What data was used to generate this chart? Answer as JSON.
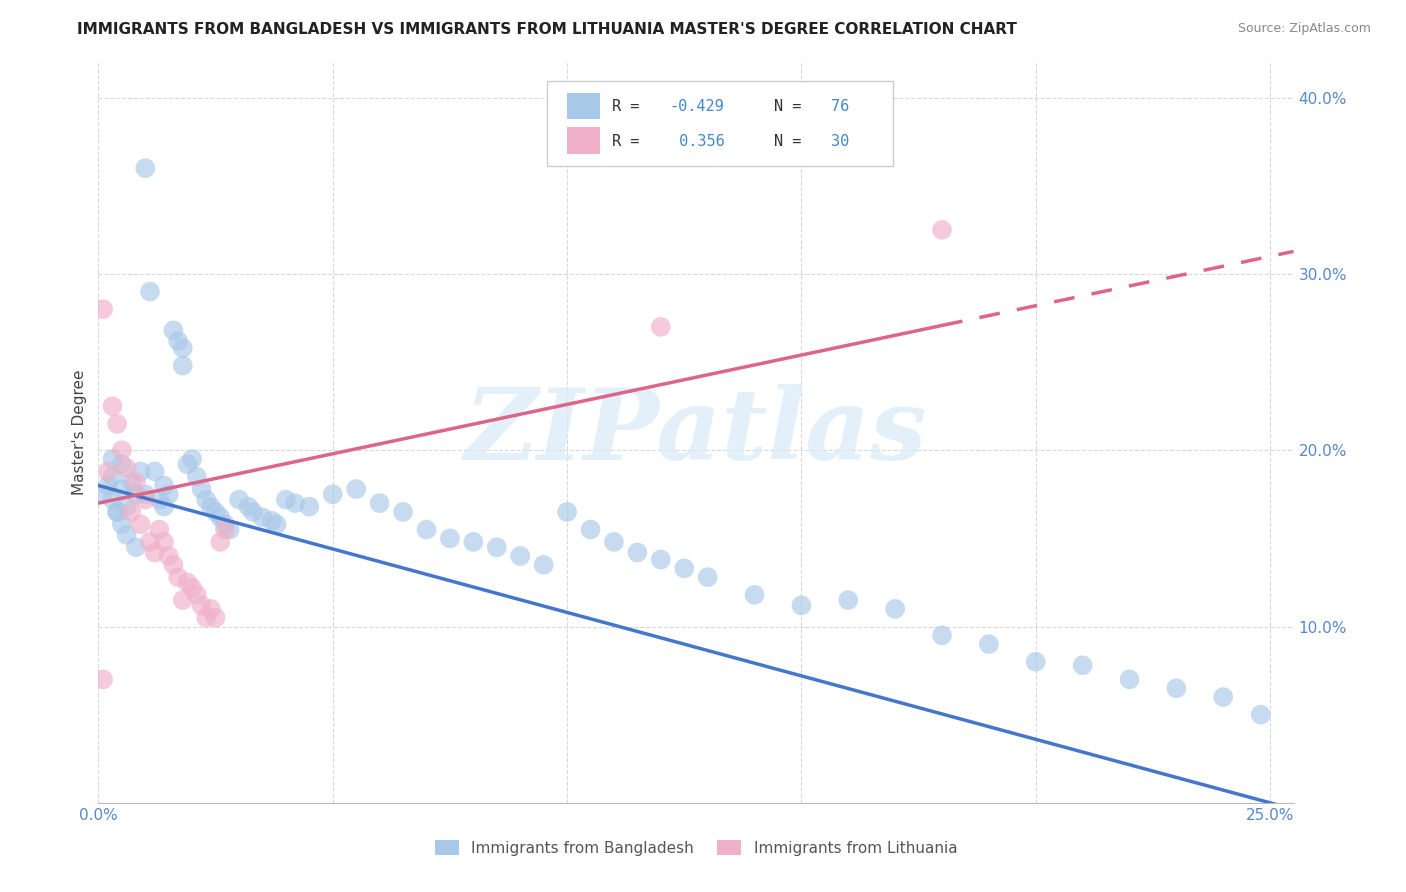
{
  "title": "IMMIGRANTS FROM BANGLADESH VS IMMIGRANTS FROM LITHUANIA MASTER'S DEGREE CORRELATION CHART",
  "source": "Source: ZipAtlas.com",
  "ylabel": "Master's Degree",
  "xlim": [
    0.0,
    0.255
  ],
  "ylim": [
    0.0,
    0.42
  ],
  "xticks": [
    0.0,
    0.05,
    0.1,
    0.15,
    0.2,
    0.25
  ],
  "yticks": [
    0.0,
    0.1,
    0.2,
    0.3,
    0.4
  ],
  "xtick_labels": [
    "0.0%",
    "",
    "",
    "",
    "",
    "25.0%"
  ],
  "ytick_labels": [
    "",
    "10.0%",
    "20.0%",
    "30.0%",
    "40.0%"
  ],
  "color_blue": "#a8c8e8",
  "color_pink": "#f0b0c8",
  "line_blue": "#4477cc",
  "line_pink": "#dd6688",
  "watermark": "ZIPatlas",
  "bg_color": "#ffffff",
  "grid_color": "#d8d8d8",
  "bangladesh_x": [
    0.001,
    0.003,
    0.003,
    0.004,
    0.005,
    0.005,
    0.006,
    0.007,
    0.008,
    0.009,
    0.01,
    0.01,
    0.011,
    0.012,
    0.013,
    0.014,
    0.014,
    0.015,
    0.016,
    0.017,
    0.018,
    0.018,
    0.019,
    0.02,
    0.021,
    0.022,
    0.023,
    0.024,
    0.025,
    0.026,
    0.027,
    0.028,
    0.03,
    0.032,
    0.033,
    0.035,
    0.037,
    0.038,
    0.04,
    0.042,
    0.045,
    0.05,
    0.055,
    0.06,
    0.065,
    0.07,
    0.075,
    0.08,
    0.085,
    0.09,
    0.095,
    0.1,
    0.105,
    0.11,
    0.115,
    0.12,
    0.125,
    0.13,
    0.14,
    0.15,
    0.16,
    0.17,
    0.18,
    0.19,
    0.2,
    0.21,
    0.22,
    0.23,
    0.24,
    0.248,
    0.002,
    0.003,
    0.004,
    0.005,
    0.006,
    0.008
  ],
  "bangladesh_y": [
    0.175,
    0.185,
    0.195,
    0.165,
    0.178,
    0.192,
    0.168,
    0.182,
    0.175,
    0.188,
    0.36,
    0.175,
    0.29,
    0.188,
    0.172,
    0.168,
    0.18,
    0.175,
    0.268,
    0.262,
    0.258,
    0.248,
    0.192,
    0.195,
    0.185,
    0.178,
    0.172,
    0.168,
    0.165,
    0.162,
    0.158,
    0.155,
    0.172,
    0.168,
    0.165,
    0.162,
    0.16,
    0.158,
    0.172,
    0.17,
    0.168,
    0.175,
    0.178,
    0.17,
    0.165,
    0.155,
    0.15,
    0.148,
    0.145,
    0.14,
    0.135,
    0.165,
    0.155,
    0.148,
    0.142,
    0.138,
    0.133,
    0.128,
    0.118,
    0.112,
    0.115,
    0.11,
    0.095,
    0.09,
    0.08,
    0.078,
    0.07,
    0.065,
    0.06,
    0.05,
    0.18,
    0.172,
    0.165,
    0.158,
    0.152,
    0.145
  ],
  "lithuania_x": [
    0.001,
    0.002,
    0.003,
    0.004,
    0.005,
    0.006,
    0.007,
    0.008,
    0.009,
    0.01,
    0.011,
    0.012,
    0.013,
    0.014,
    0.015,
    0.016,
    0.017,
    0.018,
    0.019,
    0.02,
    0.021,
    0.022,
    0.023,
    0.024,
    0.025,
    0.026,
    0.027,
    0.12,
    0.18,
    0.001
  ],
  "lithuania_y": [
    0.28,
    0.188,
    0.225,
    0.215,
    0.2,
    0.19,
    0.165,
    0.182,
    0.158,
    0.172,
    0.148,
    0.142,
    0.155,
    0.148,
    0.14,
    0.135,
    0.128,
    0.115,
    0.125,
    0.122,
    0.118,
    0.112,
    0.105,
    0.11,
    0.105,
    0.148,
    0.155,
    0.27,
    0.325,
    0.07
  ],
  "blue_intercept": 0.18,
  "blue_slope": -0.72,
  "pink_intercept": 0.17,
  "pink_slope": 0.56
}
